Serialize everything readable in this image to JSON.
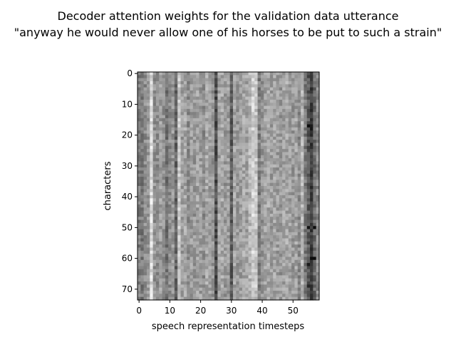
{
  "chart_data": {
    "type": "heatmap",
    "title_lines": [
      "Decoder attention weights for the validation data utterance",
      "\"anyway he would never allow one of his horses to be put to such a strain\""
    ],
    "xlabel": "speech representation timesteps",
    "ylabel": "characters",
    "n_cols": 59,
    "n_rows": 74,
    "xlim": [
      -0.5,
      58.5
    ],
    "ylim": [
      73.5,
      -0.5
    ],
    "x_ticks": [
      0,
      10,
      20,
      30,
      40,
      50
    ],
    "y_ticks": [
      0,
      10,
      20,
      30,
      40,
      50,
      60,
      70
    ],
    "colormap": "gray",
    "column_means": [
      0.5,
      0.48,
      0.55,
      0.6,
      0.86,
      0.58,
      0.55,
      0.62,
      0.58,
      0.45,
      0.55,
      0.6,
      0.4,
      0.78,
      0.62,
      0.66,
      0.56,
      0.62,
      0.6,
      0.64,
      0.62,
      0.56,
      0.66,
      0.62,
      0.58,
      0.3,
      0.64,
      0.66,
      0.6,
      0.62,
      0.36,
      0.64,
      0.6,
      0.62,
      0.66,
      0.64,
      0.72,
      0.82,
      0.78,
      0.5,
      0.58,
      0.64,
      0.66,
      0.62,
      0.64,
      0.62,
      0.6,
      0.64,
      0.66,
      0.62,
      0.6,
      0.64,
      0.55,
      0.7,
      0.48,
      0.35,
      0.25,
      0.42,
      0.55
    ],
    "strong_cells": [
      [
        17,
        55,
        0.05
      ],
      [
        17,
        56,
        0.1
      ],
      [
        18,
        56,
        0.08
      ],
      [
        50,
        55,
        0.08
      ],
      [
        50,
        57,
        0.05
      ],
      [
        60,
        56,
        0.05
      ],
      [
        60,
        57,
        0.05
      ],
      [
        62,
        55,
        0.1
      ],
      [
        69,
        55,
        0.15
      ]
    ]
  }
}
